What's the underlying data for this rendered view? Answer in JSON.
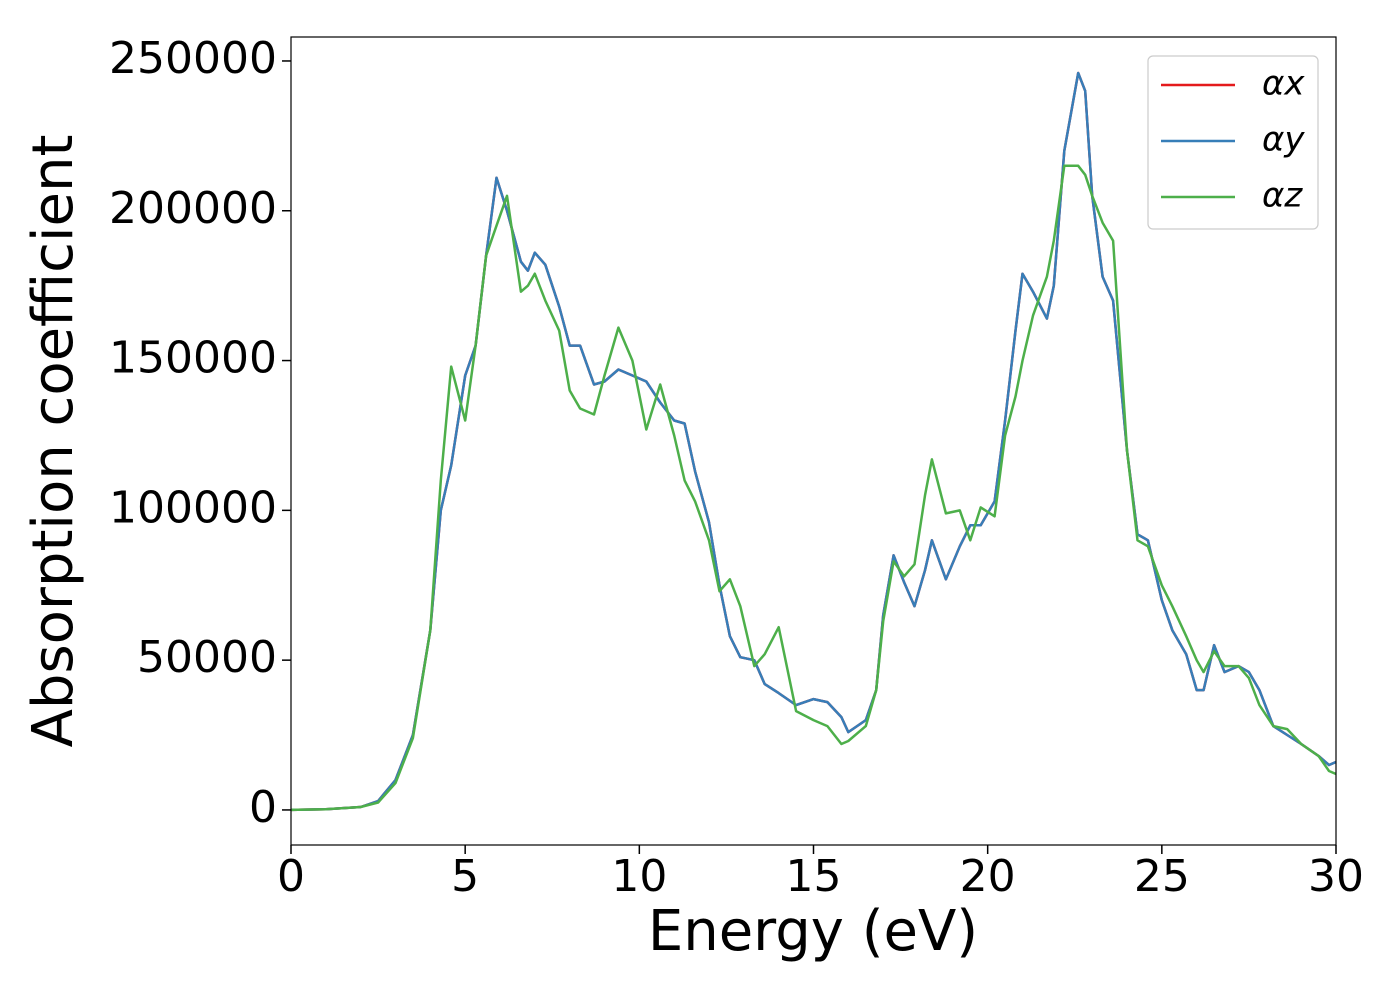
{
  "chart_data": {
    "type": "line",
    "xlabel": "Energy (eV)",
    "ylabel": "Absorption coefficient",
    "x": [
      0,
      1,
      2,
      2.5,
      3,
      3.5,
      4,
      4.3,
      4.6,
      5,
      5.3,
      5.6,
      5.9,
      6.2,
      6.6,
      6.8,
      7,
      7.3,
      7.7,
      8,
      8.3,
      8.7,
      9,
      9.4,
      9.8,
      10.2,
      10.6,
      11,
      11.3,
      11.6,
      12,
      12.3,
      12.6,
      12.9,
      13.3,
      13.6,
      14,
      14.5,
      15,
      15.4,
      15.8,
      16,
      16.5,
      16.8,
      17,
      17.3,
      17.6,
      17.9,
      18.2,
      18.4,
      18.8,
      19.2,
      19.5,
      19.8,
      20.2,
      20.5,
      20.8,
      21,
      21.3,
      21.7,
      21.9,
      22.2,
      22.6,
      22.8,
      23,
      23.3,
      23.6,
      24,
      24.3,
      24.6,
      25,
      25.3,
      25.7,
      26,
      26.2,
      26.5,
      26.8,
      27.2,
      27.5,
      27.8,
      28.2,
      28.6,
      29,
      29.5,
      29.8,
      30
    ],
    "series": [
      {
        "name": "αx",
        "color": "#e41a1c",
        "values": [
          0,
          200,
          1000,
          3000,
          10000,
          25000,
          60000,
          100000,
          115000,
          145000,
          155000,
          185000,
          211000,
          200000,
          183000,
          180000,
          186000,
          182000,
          168000,
          155000,
          155000,
          142000,
          143000,
          147000,
          145000,
          143000,
          136000,
          130000,
          129000,
          113000,
          96000,
          75000,
          58000,
          51000,
          50000,
          42000,
          39000,
          35000,
          37000,
          36000,
          31000,
          26000,
          30000,
          40000,
          65000,
          85000,
          76000,
          68000,
          80000,
          90000,
          77000,
          88000,
          95000,
          95000,
          103000,
          130000,
          160000,
          179000,
          173000,
          164000,
          175000,
          220000,
          246000,
          240000,
          205000,
          178000,
          170000,
          120000,
          92000,
          90000,
          70000,
          60000,
          52000,
          40000,
          40000,
          55000,
          46000,
          48000,
          46000,
          40000,
          28000,
          25000,
          22000,
          18000,
          15000,
          16000
        ]
      },
      {
        "name": "αy",
        "color": "#377eb8",
        "values": [
          0,
          200,
          1000,
          3000,
          10000,
          25000,
          60000,
          100000,
          115000,
          145000,
          155000,
          185000,
          211000,
          200000,
          183000,
          180000,
          186000,
          182000,
          168000,
          155000,
          155000,
          142000,
          143000,
          147000,
          145000,
          143000,
          136000,
          130000,
          129000,
          113000,
          96000,
          75000,
          58000,
          51000,
          50000,
          42000,
          39000,
          35000,
          37000,
          36000,
          31000,
          26000,
          30000,
          40000,
          65000,
          85000,
          76000,
          68000,
          80000,
          90000,
          77000,
          88000,
          95000,
          95000,
          103000,
          130000,
          160000,
          179000,
          173000,
          164000,
          175000,
          220000,
          246000,
          240000,
          205000,
          178000,
          170000,
          120000,
          92000,
          90000,
          70000,
          60000,
          52000,
          40000,
          40000,
          55000,
          46000,
          48000,
          46000,
          40000,
          28000,
          25000,
          22000,
          18000,
          15000,
          16000
        ]
      },
      {
        "name": "αz",
        "color": "#4daf4a",
        "values": [
          0,
          200,
          1000,
          2500,
          9000,
          24000,
          60000,
          110000,
          148000,
          130000,
          155000,
          185000,
          195000,
          205000,
          173000,
          175000,
          179000,
          170000,
          160000,
          140000,
          134000,
          132000,
          145000,
          161000,
          150000,
          127000,
          142000,
          125000,
          110000,
          103000,
          90000,
          73000,
          77000,
          68000,
          48000,
          52000,
          61000,
          33000,
          30000,
          28000,
          22000,
          23000,
          28000,
          40000,
          63000,
          83000,
          78000,
          82000,
          105000,
          117000,
          99000,
          100000,
          90000,
          101000,
          98000,
          125000,
          138000,
          150000,
          165000,
          178000,
          190000,
          215000,
          215000,
          212000,
          205000,
          196000,
          190000,
          120000,
          90000,
          88000,
          75000,
          68000,
          58000,
          50000,
          46000,
          53000,
          48000,
          48000,
          44000,
          35000,
          28000,
          27000,
          22000,
          18000,
          13000,
          12000
        ]
      }
    ],
    "xlim": [
      0,
      30
    ],
    "xticks": [
      0,
      5,
      10,
      15,
      20,
      25,
      30
    ],
    "ylim": [
      -11700,
      258000
    ],
    "yticks": [
      0,
      50000,
      100000,
      150000,
      200000,
      250000
    ],
    "legend": "upper right"
  }
}
